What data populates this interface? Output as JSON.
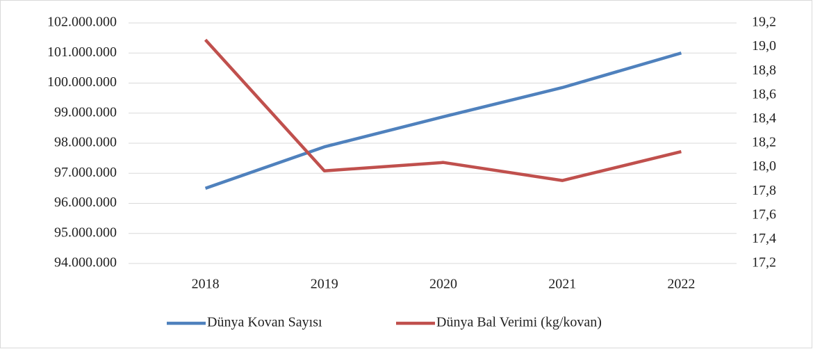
{
  "chart_data": {
    "type": "line",
    "categories": [
      "2018",
      "2019",
      "2020",
      "2021",
      "2022"
    ],
    "series": [
      {
        "name": "Dünya Kovan Sayısı",
        "color": "#4f81bd",
        "values": [
          96500000,
          97880000,
          98880000,
          99850000,
          101000000
        ]
      },
      {
        "name": "Dünya Bal Verimi (kg/kovan)",
        "color": "#c0504d",
        "axis": "y2",
        "values": [
          19.06,
          17.97,
          18.04,
          17.89,
          18.13
        ]
      }
    ],
    "ylim": [
      94000000,
      102000000
    ],
    "yticks": [
      {
        "value": 94000000,
        "label": "94.000.000"
      },
      {
        "value": 95000000,
        "label": "95.000.000"
      },
      {
        "value": 96000000,
        "label": "96.000.000"
      },
      {
        "value": 97000000,
        "label": "97.000.000"
      },
      {
        "value": 98000000,
        "label": "98.000.000"
      },
      {
        "value": 99000000,
        "label": "99.000.000"
      },
      {
        "value": 100000000,
        "label": "100.000.000"
      },
      {
        "value": 101000000,
        "label": "101.000.000"
      },
      {
        "value": 102000000,
        "label": "102.000.000"
      }
    ],
    "y2lim": [
      17.2,
      19.2
    ],
    "y2ticks": [
      {
        "value": 17.2,
        "label": "17,2"
      },
      {
        "value": 17.4,
        "label": "17,4"
      },
      {
        "value": 17.6,
        "label": "17,6"
      },
      {
        "value": 17.8,
        "label": "17,8"
      },
      {
        "value": 18.0,
        "label": "18,0"
      },
      {
        "value": 18.2,
        "label": "18,2"
      },
      {
        "value": 18.4,
        "label": "18,4"
      },
      {
        "value": 18.6,
        "label": "18,6"
      },
      {
        "value": 18.8,
        "label": "18,8"
      },
      {
        "value": 19.0,
        "label": "19,0"
      },
      {
        "value": 19.2,
        "label": "19,2"
      }
    ],
    "grid": true,
    "legend": "bottom"
  }
}
